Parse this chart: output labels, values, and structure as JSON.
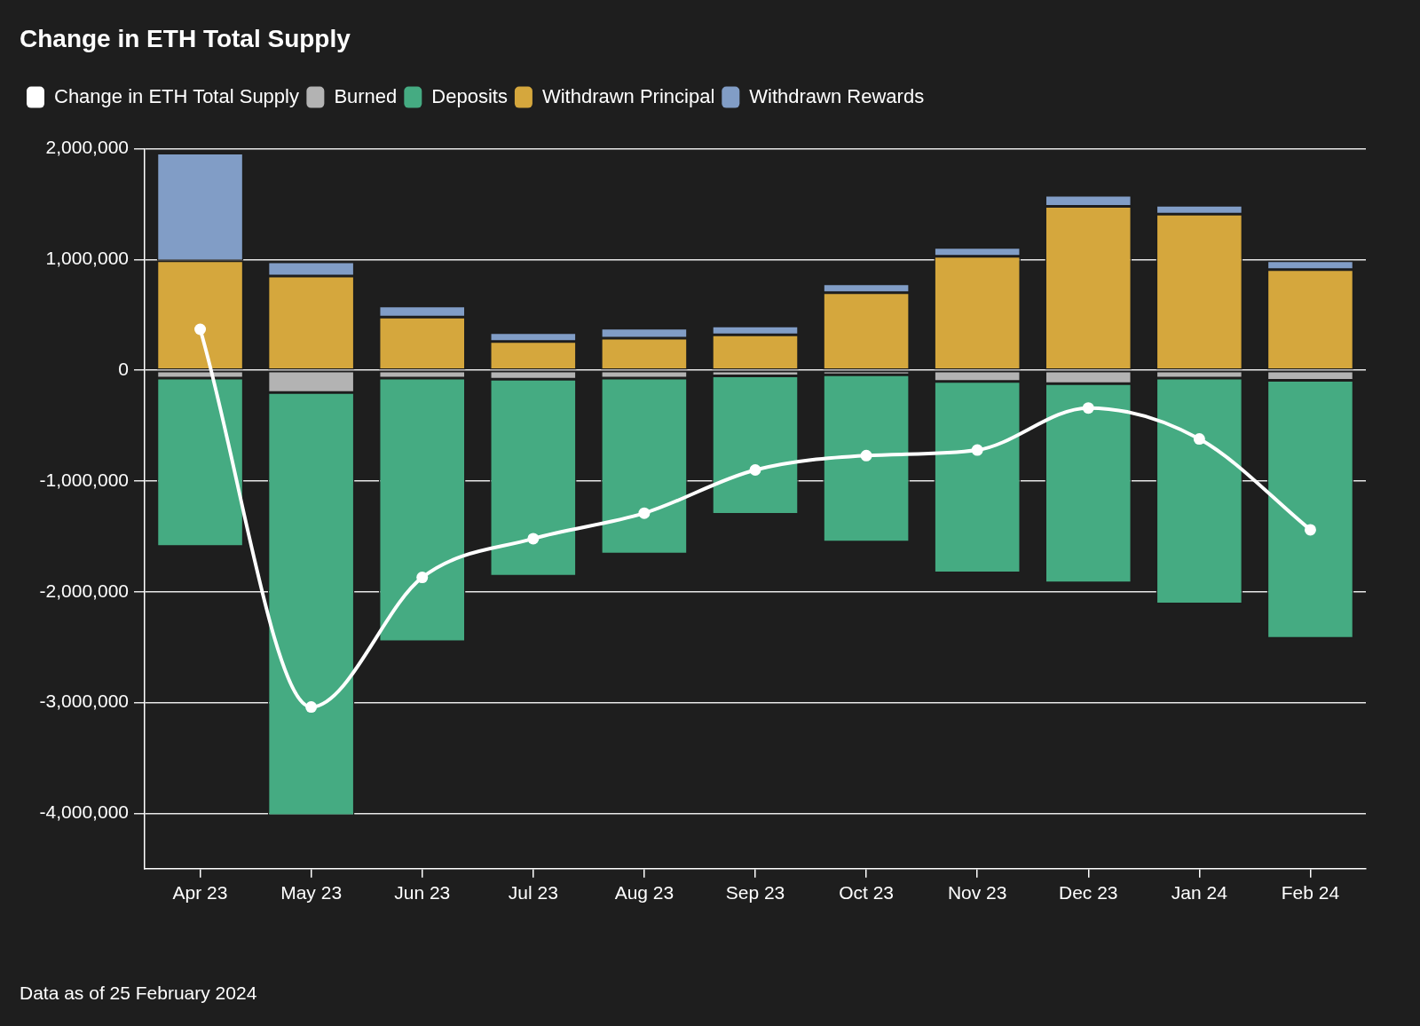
{
  "chart_data": {
    "type": "bar",
    "title": "Change in ETH Total Supply",
    "categories": [
      "Apr 23",
      "May 23",
      "Jun 23",
      "Jul 23",
      "Aug 23",
      "Sep 23",
      "Oct 23",
      "Nov 23",
      "Dec 23",
      "Jan 24",
      "Feb 24"
    ],
    "series": [
      {
        "name": "Change in ETH Total Supply",
        "type": "line",
        "color": "#ffffff",
        "values": [
          370000,
          -3040000,
          -1870000,
          -1520000,
          -1290000,
          -900000,
          -770000,
          -720000,
          -340000,
          -620000,
          -1440000
        ]
      },
      {
        "name": "Burned",
        "color": "#b3b3b3",
        "values": [
          -70000,
          -200000,
          -70000,
          -80000,
          -70000,
          -50000,
          -40000,
          -100000,
          -120000,
          -70000,
          -90000
        ]
      },
      {
        "name": "Deposits",
        "color": "#45ab82",
        "values": [
          -1520000,
          -3820000,
          -2380000,
          -1780000,
          -1590000,
          -1250000,
          -1510000,
          -1730000,
          -1800000,
          -2040000,
          -2330000
        ]
      },
      {
        "name": "Withdrawn Principal",
        "color": "#d5a73d",
        "values": [
          990000,
          850000,
          480000,
          260000,
          290000,
          320000,
          700000,
          1030000,
          1480000,
          1410000,
          910000
        ]
      },
      {
        "name": "Withdrawn Rewards",
        "color": "#819dc6",
        "values": [
          970000,
          130000,
          100000,
          80000,
          90000,
          80000,
          80000,
          80000,
          100000,
          80000,
          80000
        ]
      }
    ],
    "stacked": true,
    "ylim": [
      -4500000,
      2000000
    ],
    "yticks": [
      {
        "value": 2000000,
        "label": "2,000,000"
      },
      {
        "value": 1000000,
        "label": "1,000,000"
      },
      0,
      {
        "value": -1000000,
        "label": "-1,000,000"
      },
      {
        "value": -2000000,
        "label": "-2,000,000"
      },
      {
        "value": -3000000,
        "label": "-3,000,000"
      },
      {
        "value": -4000000,
        "label": "-4,000,000"
      }
    ],
    "grid": "y",
    "legend": "top left",
    "marker": "circle",
    "line_style": "solid",
    "annotations": [
      "Data as of 25 February 2024"
    ]
  }
}
